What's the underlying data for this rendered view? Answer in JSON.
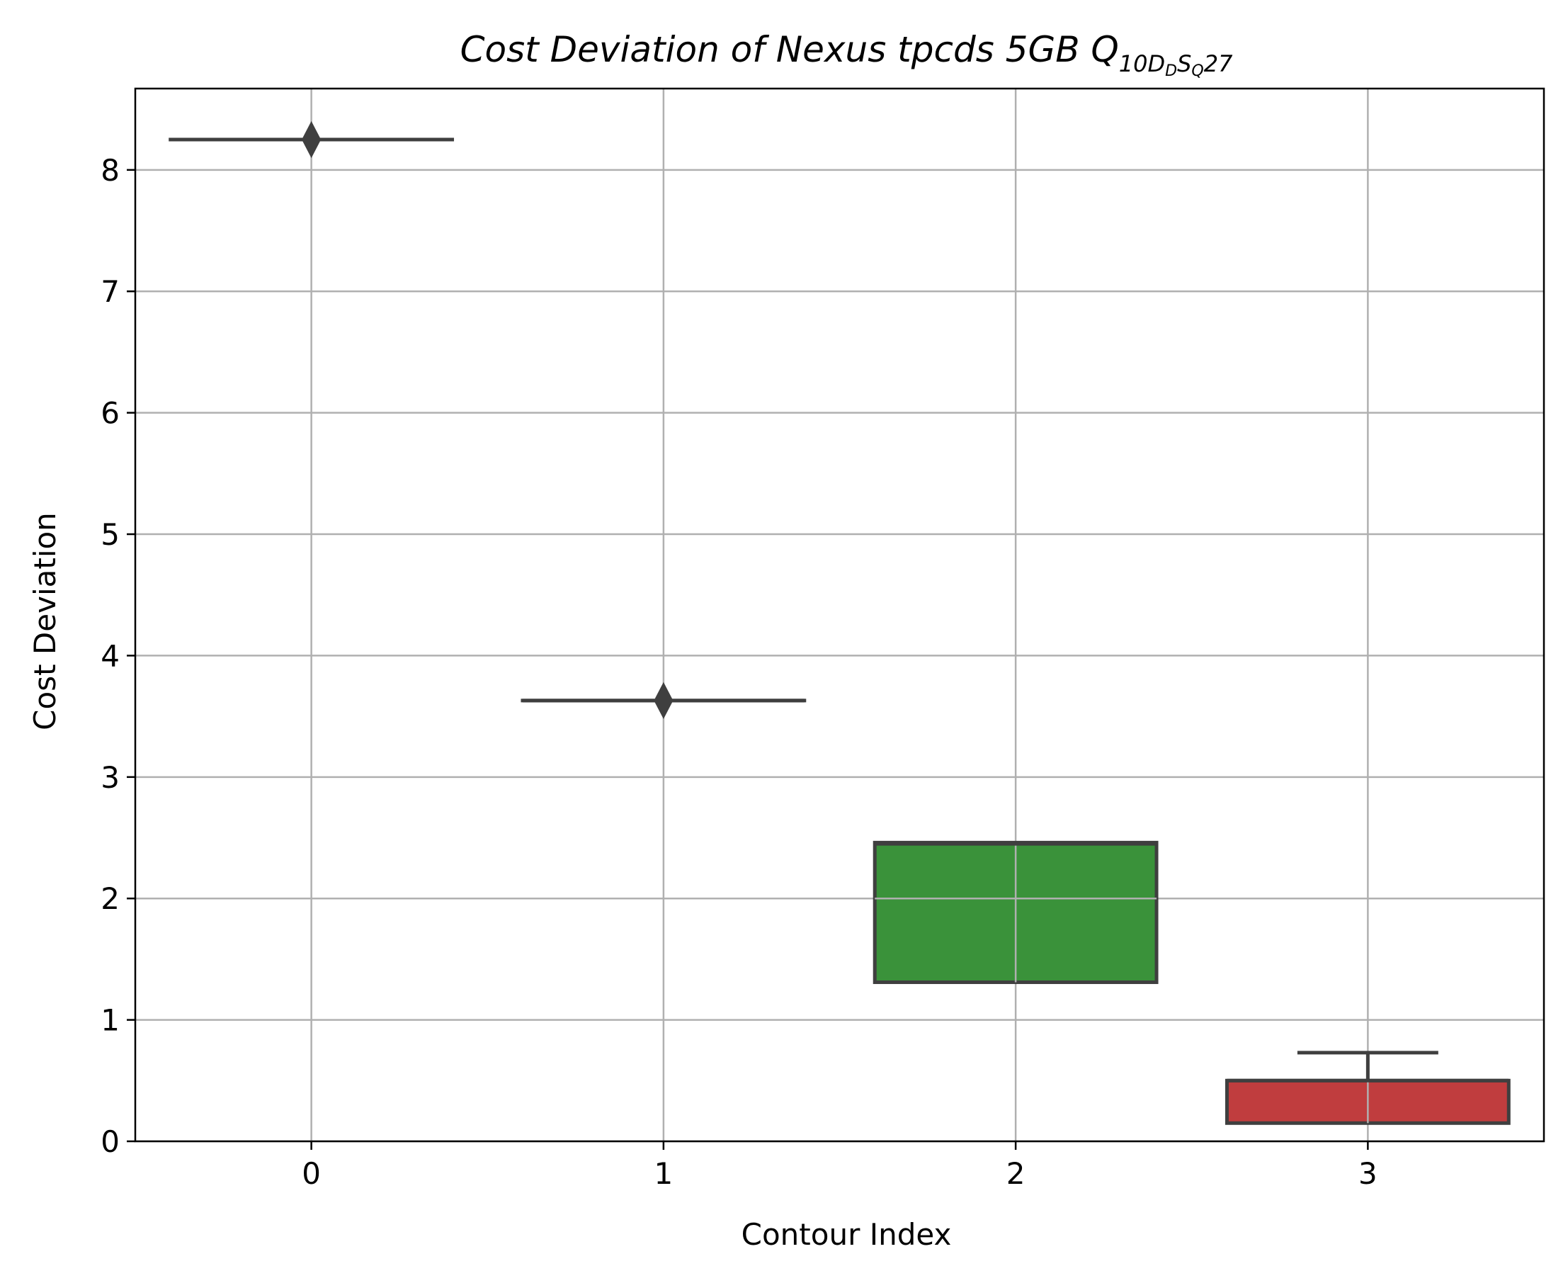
{
  "chart_data": {
    "type": "box",
    "title": {
      "main": "Cost Deviation of Nexus tpcds  5GB  Q",
      "sub": "10",
      "sub_a": "D",
      "sub_b": "D",
      "sub_c": "S",
      "sub_d": "Q",
      "tail": "27"
    },
    "xlabel": "Contour Index",
    "ylabel": "Cost Deviation",
    "categories": [
      "0",
      "1",
      "2",
      "3"
    ],
    "ylim": [
      0,
      8.67
    ],
    "yticks": [
      0,
      1,
      2,
      3,
      4,
      5,
      6,
      7,
      8
    ],
    "grid": true,
    "boxes": [
      {
        "category": "0",
        "q1": 8.25,
        "median": 8.25,
        "q3": 8.25,
        "whisker_low": 8.25,
        "whisker_high": 8.25,
        "fliers": [
          8.25
        ],
        "color": "#1f77b4"
      },
      {
        "category": "1",
        "q1": 3.63,
        "median": 3.63,
        "q3": 3.63,
        "whisker_low": 3.63,
        "whisker_high": 3.63,
        "fliers": [
          3.63
        ],
        "color": "#ff7f0e"
      },
      {
        "category": "2",
        "q1": 1.31,
        "median": 2.45,
        "q3": 2.46,
        "whisker_low": 1.31,
        "whisker_high": 2.46,
        "fliers": [],
        "color": "#3a923a"
      },
      {
        "category": "3",
        "q1": 0.15,
        "median": 0.5,
        "q3": 0.5,
        "whisker_low": 0.15,
        "whisker_high": 0.73,
        "fliers": [],
        "color": "#c03d3e"
      }
    ],
    "edge_color": "#3f3f3f",
    "grid_color": "#b0b0b0"
  }
}
